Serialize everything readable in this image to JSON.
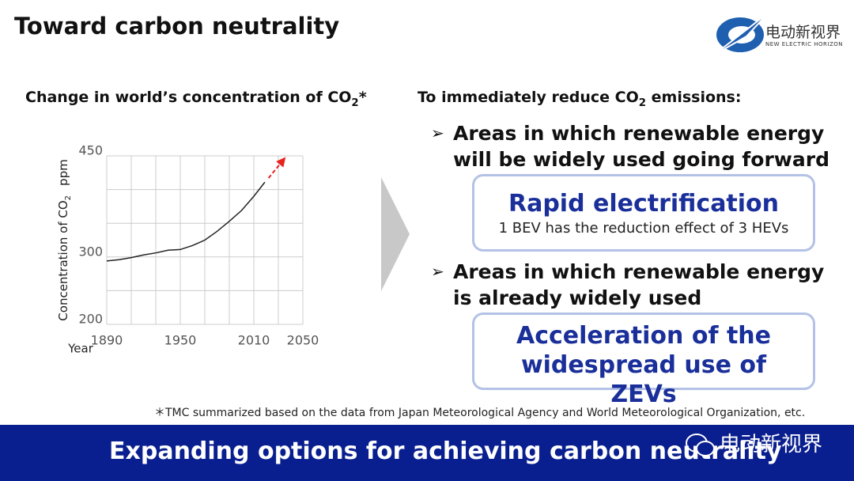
{
  "header": {
    "title": "Toward carbon neutrality",
    "logo_cn": "电动新视界",
    "logo_en": "NEW ELECTRIC HORIZON"
  },
  "chart_data": {
    "type": "line",
    "title": "Change in world’s concentration of CO",
    "title_subscript": "2",
    "title_suffix": "*",
    "ylabel": "Concentration of CO",
    "ylabel_subscript": "2",
    "ylabel_unit": "ppm",
    "xlabel": "Year",
    "x": [
      1890,
      1900,
      1910,
      1920,
      1930,
      1940,
      1950,
      1960,
      1970,
      1980,
      1990,
      2000,
      2010,
      2019
    ],
    "series": [
      {
        "color": "#222222",
        "values": [
          294,
          296,
          299,
          303,
          306,
          310,
          311,
          317,
          325,
          338,
          353,
          369,
          390,
          411
        ]
      },
      {
        "color": "#e8231e",
        "dashed": true,
        "arrow": true,
        "x": [
          2022,
          2035
        ],
        "values": [
          417,
          446
        ]
      }
    ],
    "xlim": [
      1890,
      2050
    ],
    "ylim": [
      200,
      450
    ],
    "xticks": [
      1890,
      1950,
      2010,
      2050
    ],
    "yticks": [
      200,
      300,
      450
    ],
    "xgrid": [
      1890,
      1910,
      1930,
      1950,
      1970,
      1990,
      2010,
      2030,
      2050
    ],
    "ygrid": [
      200,
      250,
      300,
      350,
      400,
      450
    ],
    "grid": true,
    "grid_color": "#cccccc"
  },
  "right": {
    "heading": "To immediately reduce CO",
    "heading_subscript": "2",
    "heading_suffix": " emissions:",
    "items": [
      {
        "bullet": "Areas in which renewable energy will be widely used going forward",
        "box_title": "Rapid electrification",
        "box_text": "1 BEV has the reduction effect of 3 HEVs"
      },
      {
        "bullet": "Areas in which renewable energy is already widely used",
        "box_title": "Acceleration of the widespread use of ZEVs"
      }
    ]
  },
  "footnote": "＊TMC summarized based on the data from Japan Meteorological Agency and World Meteorological Organization, etc.",
  "banner": {
    "text": "Expanding options for achieving carbon neutrality",
    "watermark": "电动新视界"
  }
}
